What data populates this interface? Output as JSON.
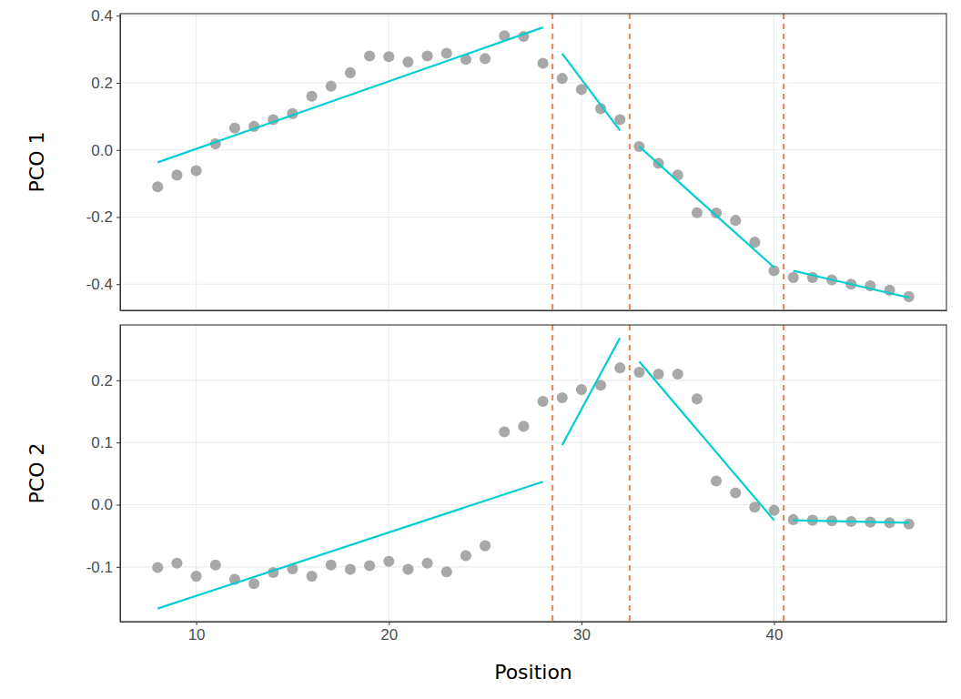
{
  "chart_data": [
    {
      "type": "scatter",
      "y_label": "PCO 1",
      "xlim": [
        6.05,
        48.95
      ],
      "xticks": [
        10,
        20,
        30,
        40
      ],
      "ylim": [
        -0.478,
        0.406
      ],
      "yticks": [
        -0.4,
        -0.2,
        {
          "value": 0,
          "label": "0.0"
        },
        0.2,
        0.4
      ],
      "grid": true,
      "tick_labels": "y",
      "x": [
        8,
        9,
        10,
        11,
        12,
        13,
        14,
        15,
        16,
        17,
        18,
        19,
        20,
        21,
        22,
        23,
        24,
        25,
        26,
        27,
        28,
        29,
        30,
        31,
        32,
        33,
        34,
        35,
        36,
        37,
        38,
        39,
        40,
        41,
        42,
        43,
        44,
        45,
        46,
        47
      ],
      "series": [
        {
          "type": "scatter",
          "marker": "circle",
          "color": "#a8a8a8",
          "values": [
            -0.11,
            -0.075,
            -0.062,
            0.018,
            0.065,
            0.07,
            0.09,
            0.108,
            0.16,
            0.19,
            0.23,
            0.28,
            0.278,
            0.262,
            0.28,
            0.288,
            0.27,
            0.272,
            0.34,
            0.338,
            0.258,
            0.213,
            0.18,
            0.123,
            0.09,
            0.01,
            -0.04,
            -0.075,
            -0.187,
            -0.188,
            -0.21,
            -0.275,
            -0.36,
            -0.38,
            -0.38,
            -0.387,
            -0.4,
            -0.405,
            -0.418,
            -0.437
          ]
        },
        {
          "type": "line",
          "color": "#00ced1",
          "x": [
            8,
            28
          ],
          "values": [
            -0.037,
            0.365
          ]
        },
        {
          "type": "line",
          "color": "#00ced1",
          "x": [
            29,
            32
          ],
          "values": [
            0.287,
            0.058
          ]
        },
        {
          "type": "line",
          "color": "#00ced1",
          "x": [
            33,
            40
          ],
          "values": [
            0.01,
            -0.35
          ]
        },
        {
          "type": "line",
          "color": "#00ced1",
          "x": [
            41,
            47
          ],
          "values": [
            -0.36,
            -0.44
          ]
        }
      ],
      "vlines": {
        "x": [
          28.5,
          32.5,
          40.5
        ],
        "color": "#ee8050",
        "line_style": "dashed"
      }
    },
    {
      "type": "scatter",
      "y_label": "PCO 2",
      "x_label": "Position",
      "xlim": [
        6.05,
        48.95
      ],
      "xticks": [
        10,
        20,
        30,
        40
      ],
      "ylim": [
        -0.188,
        0.289
      ],
      "yticks": [
        -0.1,
        {
          "value": 0,
          "label": "0.0"
        },
        0.1,
        0.2
      ],
      "grid": true,
      "x": [
        8,
        9,
        10,
        11,
        12,
        13,
        14,
        15,
        16,
        17,
        18,
        19,
        20,
        21,
        22,
        23,
        24,
        25,
        26,
        27,
        28,
        29,
        30,
        31,
        32,
        33,
        34,
        35,
        36,
        37,
        38,
        39,
        40,
        41,
        42,
        43,
        44,
        45,
        46,
        47
      ],
      "series": [
        {
          "type": "scatter",
          "marker": "circle",
          "color": "#a8a8a8",
          "values": [
            -0.101,
            -0.094,
            -0.115,
            -0.097,
            -0.12,
            -0.127,
            -0.109,
            -0.103,
            -0.115,
            -0.097,
            -0.104,
            -0.098,
            -0.091,
            -0.104,
            -0.094,
            -0.108,
            -0.082,
            -0.066,
            0.117,
            0.126,
            0.166,
            0.172,
            0.185,
            0.192,
            0.22,
            0.213,
            0.21,
            0.21,
            0.17,
            0.038,
            0.019,
            -0.004,
            -0.009,
            -0.024,
            -0.025,
            -0.026,
            -0.027,
            -0.028,
            -0.029,
            -0.031
          ]
        },
        {
          "type": "line",
          "color": "#00ced1",
          "x": [
            8,
            28
          ],
          "values": [
            -0.167,
            0.037
          ]
        },
        {
          "type": "line",
          "color": "#00ced1",
          "x": [
            29,
            32
          ],
          "values": [
            0.096,
            0.268
          ]
        },
        {
          "type": "line",
          "color": "#00ced1",
          "x": [
            33,
            40
          ],
          "values": [
            0.23,
            -0.025
          ]
        },
        {
          "type": "line",
          "color": "#00ced1",
          "x": [
            41,
            47
          ],
          "values": [
            -0.025,
            -0.029
          ]
        }
      ],
      "vlines": {
        "x": [
          28.5,
          32.5,
          40.5
        ],
        "color": "#ee8050",
        "line_style": "dashed"
      }
    }
  ]
}
